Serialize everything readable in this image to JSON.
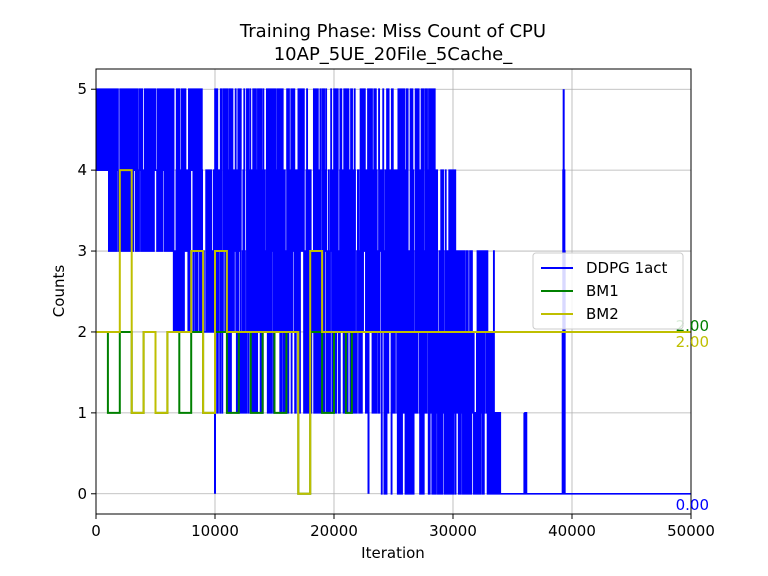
{
  "chart_data": {
    "type": "line",
    "title": "Training Phase: Miss Count of CPU",
    "subtitle": "10AP_5UE_20File_5Cache_",
    "xlabel": "Iteration",
    "ylabel": "Counts",
    "xlim": [
      0,
      50000
    ],
    "ylim": [
      -0.25,
      5.25
    ],
    "x_ticks": [
      0,
      10000,
      20000,
      30000,
      40000,
      50000
    ],
    "x_tick_labels": [
      "0",
      "10000",
      "20000",
      "30000",
      "40000",
      "50000"
    ],
    "y_ticks": [
      0,
      1,
      2,
      3,
      4,
      5
    ],
    "y_tick_labels": [
      "0",
      "1",
      "2",
      "3",
      "4",
      "5"
    ],
    "grid": true,
    "legend": {
      "placement": "center-right"
    },
    "series": [
      {
        "name": "DDPG 1act",
        "color": "#0000ff",
        "kind": "noisy",
        "segments": [
          {
            "x0": 0,
            "x1": 1000,
            "lo": 4,
            "hi": 5
          },
          {
            "x0": 1000,
            "x1": 2000,
            "lo": 3,
            "hi": 5
          },
          {
            "x0": 2000,
            "x1": 4000,
            "lo": 3,
            "hi": 5
          },
          {
            "x0": 4000,
            "x1": 6500,
            "lo": 3,
            "hi": 5
          },
          {
            "x0": 6500,
            "x1": 9000,
            "lo": 2,
            "hi": 5
          },
          {
            "x0": 9000,
            "x1": 10000,
            "lo": 2,
            "hi": 4
          },
          {
            "x0": 10000,
            "x1": 12000,
            "lo": 1,
            "hi": 5
          },
          {
            "x0": 12000,
            "x1": 18000,
            "lo": 1,
            "hi": 5
          },
          {
            "x0": 18000,
            "x1": 22000,
            "lo": 1,
            "hi": 5
          },
          {
            "x0": 22000,
            "x1": 24000,
            "lo": 1,
            "hi": 5
          },
          {
            "x0": 24000,
            "x1": 28500,
            "lo": 0,
            "hi": 5
          },
          {
            "x0": 28500,
            "x1": 30500,
            "lo": 0,
            "hi": 4
          },
          {
            "x0": 30500,
            "x1": 33500,
            "lo": 0,
            "hi": 3
          },
          {
            "x0": 33500,
            "x1": 34000,
            "lo": 0,
            "hi": 1
          },
          {
            "x0": 34000,
            "x1": 36000,
            "lo": 0,
            "hi": 0
          },
          {
            "x0": 36000,
            "x1": 36200,
            "lo": 0,
            "hi": 1
          },
          {
            "x0": 36200,
            "x1": 39200,
            "lo": 0,
            "hi": 0
          },
          {
            "x0": 39200,
            "x1": 39400,
            "lo": 0,
            "hi": 5
          },
          {
            "x0": 39400,
            "x1": 50000,
            "lo": 0,
            "hi": 0
          }
        ],
        "spikes": [
          {
            "x": 10000,
            "lo": 0,
            "hi": 4
          },
          {
            "x": 22900,
            "lo": 0,
            "hi": 2
          },
          {
            "x": 33800,
            "lo": 0,
            "hi": 1
          },
          {
            "x": 36000,
            "lo": 0,
            "hi": 1
          },
          {
            "x": 39300,
            "lo": 0,
            "hi": 5
          }
        ],
        "final_value": 0.0,
        "final_label": "0.00"
      },
      {
        "name": "BM1",
        "color": "#008000",
        "kind": "step",
        "points": [
          [
            0,
            2
          ],
          [
            1000,
            2
          ],
          [
            1000,
            1
          ],
          [
            2000,
            1
          ],
          [
            2000,
            2
          ],
          [
            3000,
            2
          ],
          [
            3000,
            1
          ],
          [
            4000,
            1
          ],
          [
            4000,
            2
          ],
          [
            5000,
            2
          ],
          [
            5000,
            1
          ],
          [
            6000,
            1
          ],
          [
            6000,
            2
          ],
          [
            7000,
            2
          ],
          [
            7000,
            1
          ],
          [
            8000,
            1
          ],
          [
            8000,
            2
          ],
          [
            9000,
            2
          ],
          [
            9000,
            1
          ],
          [
            10000,
            1
          ],
          [
            10000,
            2
          ],
          [
            11000,
            2
          ],
          [
            11000,
            1
          ],
          [
            12000,
            1
          ],
          [
            12000,
            2
          ],
          [
            13000,
            2
          ],
          [
            13000,
            1
          ],
          [
            14000,
            1
          ],
          [
            14000,
            2
          ],
          [
            15000,
            2
          ],
          [
            15000,
            1
          ],
          [
            16000,
            1
          ],
          [
            16000,
            2
          ],
          [
            17000,
            2
          ],
          [
            17000,
            0
          ],
          [
            18000,
            0
          ],
          [
            18000,
            2
          ],
          [
            19000,
            2
          ],
          [
            19000,
            1
          ],
          [
            20000,
            1
          ],
          [
            20000,
            2
          ],
          [
            21000,
            2
          ],
          [
            21000,
            1
          ],
          [
            21500,
            1
          ],
          [
            21500,
            2
          ],
          [
            50000,
            2
          ]
        ],
        "final_value": 2.0,
        "final_label": "2.00"
      },
      {
        "name": "BM2",
        "color": "#bfbf00",
        "kind": "step",
        "points": [
          [
            0,
            2
          ],
          [
            2000,
            2
          ],
          [
            2000,
            4
          ],
          [
            3000,
            4
          ],
          [
            3000,
            1
          ],
          [
            4000,
            1
          ],
          [
            4000,
            2
          ],
          [
            5000,
            2
          ],
          [
            5000,
            1
          ],
          [
            6000,
            1
          ],
          [
            6000,
            2
          ],
          [
            7000,
            2
          ],
          [
            7000,
            2
          ],
          [
            8000,
            2
          ],
          [
            8000,
            3
          ],
          [
            9000,
            3
          ],
          [
            9000,
            1
          ],
          [
            10000,
            1
          ],
          [
            10000,
            3
          ],
          [
            11000,
            3
          ],
          [
            11000,
            2
          ],
          [
            17000,
            2
          ],
          [
            17000,
            0
          ],
          [
            18000,
            0
          ],
          [
            18000,
            3
          ],
          [
            19000,
            3
          ],
          [
            19000,
            2
          ],
          [
            50000,
            2
          ]
        ],
        "final_value": 2.0,
        "final_label": "2.00"
      }
    ]
  }
}
